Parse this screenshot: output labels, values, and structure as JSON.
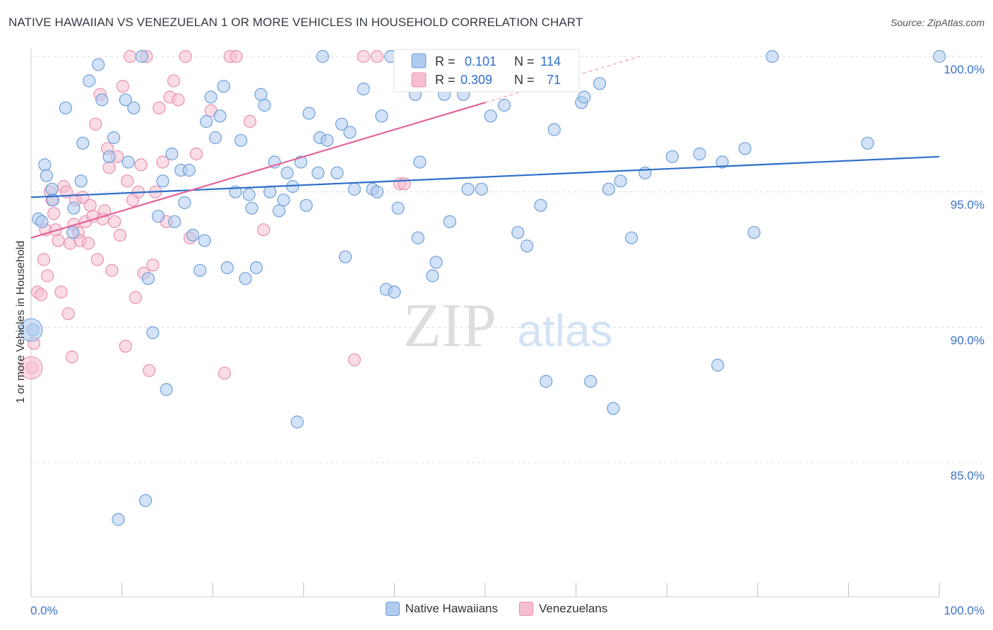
{
  "header": {
    "title": "NATIVE HAWAIIAN VS VENEZUELAN 1 OR MORE VEHICLES IN HOUSEHOLD CORRELATION CHART",
    "source": "Source: ZipAtlas.com"
  },
  "watermark": {
    "zip": "ZIP",
    "atlas": "atlas"
  },
  "colors": {
    "blue_fill": "#aecbee",
    "blue_stroke": "#6f9fd8",
    "blue_line": "#2f6fcb",
    "pink_fill": "#f6bfd0",
    "pink_stroke": "#ea8fb0",
    "pink_line": "#e2649a",
    "tick_label": "#3b73c6",
    "grid": "#dcdcdc"
  },
  "chart_data": {
    "type": "scatter",
    "title": "NATIVE HAWAIIAN VS VENEZUELAN 1 OR MORE VEHICLES IN HOUSEHOLD CORRELATION CHART",
    "xlabel": "",
    "ylabel": "1 or more Vehicles in Household",
    "xlim": [
      0,
      100
    ],
    "ylim": [
      80.5,
      100.5
    ],
    "x_tick_labels": [
      "0.0%",
      "100.0%"
    ],
    "y_ticks": [
      85,
      90,
      95,
      100
    ],
    "y_tick_labels": [
      "85.0%",
      "90.0%",
      "95.0%",
      "100.0%"
    ],
    "legend_stats": [
      {
        "series": "Native Hawaiians",
        "r_label": "R =",
        "r": "0.101",
        "n_label": "N =",
        "n": "114"
      },
      {
        "series": "Venezuelans",
        "r_label": "R =",
        "r": "0.309",
        "n_label": "N =",
        "n": "71"
      }
    ],
    "series": [
      {
        "name": "Native Hawaiians",
        "color": "blue",
        "trend": {
          "x": [
            0,
            100
          ],
          "y": [
            94.8,
            96.3
          ]
        },
        "points": [
          [
            0.2,
            89.9
          ],
          [
            0.8,
            94.0
          ],
          [
            1.2,
            93.9
          ],
          [
            1.5,
            96.0
          ],
          [
            1.7,
            95.6
          ],
          [
            2.3,
            95.1
          ],
          [
            2.4,
            94.7
          ],
          [
            3.8,
            98.1
          ],
          [
            4.6,
            93.5
          ],
          [
            4.7,
            94.4
          ],
          [
            5.5,
            95.4
          ],
          [
            5.7,
            96.8
          ],
          [
            6.4,
            99.1
          ],
          [
            7.4,
            99.7
          ],
          [
            7.8,
            98.4
          ],
          [
            8.6,
            96.3
          ],
          [
            9.1,
            97.0
          ],
          [
            9.6,
            82.9
          ],
          [
            10.4,
            98.4
          ],
          [
            10.7,
            96.1
          ],
          [
            11.3,
            98.1
          ],
          [
            12.2,
            100.0
          ],
          [
            12.6,
            83.6
          ],
          [
            12.9,
            91.8
          ],
          [
            13.4,
            89.8
          ],
          [
            14.0,
            94.1
          ],
          [
            14.5,
            95.4
          ],
          [
            14.9,
            87.7
          ],
          [
            15.5,
            96.4
          ],
          [
            15.8,
            93.9
          ],
          [
            16.5,
            95.8
          ],
          [
            16.9,
            94.6
          ],
          [
            17.4,
            95.8
          ],
          [
            17.8,
            93.4
          ],
          [
            18.6,
            92.1
          ],
          [
            19.1,
            93.2
          ],
          [
            19.3,
            97.6
          ],
          [
            19.8,
            98.5
          ],
          [
            20.3,
            97.0
          ],
          [
            20.8,
            97.8
          ],
          [
            21.2,
            98.9
          ],
          [
            21.6,
            92.2
          ],
          [
            22.5,
            95.0
          ],
          [
            23.1,
            96.9
          ],
          [
            23.6,
            91.8
          ],
          [
            24.0,
            94.9
          ],
          [
            24.3,
            94.4
          ],
          [
            24.8,
            92.2
          ],
          [
            25.3,
            98.6
          ],
          [
            25.7,
            98.2
          ],
          [
            26.3,
            95.0
          ],
          [
            26.8,
            96.1
          ],
          [
            27.3,
            94.3
          ],
          [
            27.8,
            94.7
          ],
          [
            28.2,
            95.7
          ],
          [
            28.8,
            95.2
          ],
          [
            29.3,
            86.5
          ],
          [
            29.7,
            96.1
          ],
          [
            30.3,
            94.5
          ],
          [
            30.6,
            97.9
          ],
          [
            31.6,
            95.7
          ],
          [
            31.8,
            97.0
          ],
          [
            32.1,
            100.0
          ],
          [
            32.6,
            96.9
          ],
          [
            33.7,
            95.7
          ],
          [
            34.2,
            97.5
          ],
          [
            34.6,
            92.6
          ],
          [
            35.1,
            97.2
          ],
          [
            35.6,
            95.1
          ],
          [
            36.6,
            98.8
          ],
          [
            37.6,
            95.1
          ],
          [
            38.1,
            95.0
          ],
          [
            38.6,
            97.8
          ],
          [
            39.1,
            91.4
          ],
          [
            39.6,
            100.0
          ],
          [
            40.0,
            91.3
          ],
          [
            40.4,
            94.4
          ],
          [
            41.6,
            100.0
          ],
          [
            42.3,
            98.6
          ],
          [
            42.6,
            93.3
          ],
          [
            42.8,
            96.1
          ],
          [
            44.2,
            91.9
          ],
          [
            44.6,
            92.4
          ],
          [
            45.5,
            98.6
          ],
          [
            46.1,
            93.9
          ],
          [
            47.6,
            98.6
          ],
          [
            48.1,
            95.1
          ],
          [
            49.6,
            95.1
          ],
          [
            50.6,
            97.8
          ],
          [
            52.1,
            98.2
          ],
          [
            53.6,
            93.5
          ],
          [
            54.6,
            93.0
          ],
          [
            56.1,
            94.5
          ],
          [
            56.7,
            88.0
          ],
          [
            57.6,
            97.3
          ],
          [
            59.6,
            100.0
          ],
          [
            60.6,
            98.3
          ],
          [
            60.9,
            98.5
          ],
          [
            61.6,
            88.0
          ],
          [
            62.6,
            99.0
          ],
          [
            63.6,
            95.1
          ],
          [
            64.1,
            87.0
          ],
          [
            64.9,
            95.4
          ],
          [
            66.1,
            93.3
          ],
          [
            67.6,
            95.7
          ],
          [
            70.6,
            96.3
          ],
          [
            73.6,
            96.4
          ],
          [
            75.6,
            88.6
          ],
          [
            76.1,
            96.1
          ],
          [
            78.6,
            96.6
          ],
          [
            79.6,
            93.5
          ],
          [
            81.6,
            100.0
          ],
          [
            92.1,
            96.8
          ],
          [
            100.0,
            100.0
          ]
        ]
      },
      {
        "name": "Venezuelans",
        "color": "pink",
        "trend": {
          "x": [
            0,
            50
          ],
          "y": [
            93.3,
            98.3
          ]
        },
        "dashed_extension": {
          "x": [
            50,
            67
          ],
          "y": [
            98.3,
            100.0
          ]
        },
        "points": [
          [
            0.1,
            88.5
          ],
          [
            0.3,
            89.4
          ],
          [
            0.7,
            91.3
          ],
          [
            1.1,
            91.2
          ],
          [
            1.4,
            92.5
          ],
          [
            1.6,
            93.6
          ],
          [
            1.8,
            91.9
          ],
          [
            2.1,
            95.0
          ],
          [
            2.3,
            94.7
          ],
          [
            2.5,
            94.2
          ],
          [
            2.7,
            93.6
          ],
          [
            3.0,
            93.2
          ],
          [
            3.3,
            91.3
          ],
          [
            3.6,
            95.2
          ],
          [
            3.9,
            95.0
          ],
          [
            4.1,
            90.5
          ],
          [
            4.3,
            93.1
          ],
          [
            4.5,
            88.9
          ],
          [
            4.7,
            93.8
          ],
          [
            4.9,
            94.7
          ],
          [
            5.2,
            93.5
          ],
          [
            5.4,
            93.2
          ],
          [
            5.7,
            94.8
          ],
          [
            6.0,
            93.9
          ],
          [
            6.3,
            93.1
          ],
          [
            6.5,
            94.5
          ],
          [
            6.8,
            94.1
          ],
          [
            7.1,
            97.5
          ],
          [
            7.3,
            92.5
          ],
          [
            7.6,
            98.6
          ],
          [
            7.9,
            94.0
          ],
          [
            8.1,
            94.3
          ],
          [
            8.4,
            96.6
          ],
          [
            8.6,
            95.9
          ],
          [
            8.9,
            92.1
          ],
          [
            9.2,
            93.9
          ],
          [
            9.5,
            96.3
          ],
          [
            9.8,
            93.4
          ],
          [
            10.1,
            98.9
          ],
          [
            10.4,
            89.3
          ],
          [
            10.6,
            95.4
          ],
          [
            10.9,
            100.0
          ],
          [
            11.2,
            94.7
          ],
          [
            11.5,
            91.1
          ],
          [
            11.8,
            95.0
          ],
          [
            12.1,
            96.0
          ],
          [
            12.4,
            92.0
          ],
          [
            12.7,
            100.0
          ],
          [
            13.0,
            88.4
          ],
          [
            13.4,
            92.3
          ],
          [
            13.7,
            95.0
          ],
          [
            14.1,
            98.1
          ],
          [
            14.5,
            96.1
          ],
          [
            14.9,
            93.9
          ],
          [
            15.3,
            98.5
          ],
          [
            15.7,
            99.1
          ],
          [
            16.2,
            98.4
          ],
          [
            17.0,
            100.0
          ],
          [
            17.5,
            93.3
          ],
          [
            18.2,
            96.4
          ],
          [
            19.8,
            98.0
          ],
          [
            21.3,
            88.3
          ],
          [
            21.9,
            100.0
          ],
          [
            22.6,
            100.0
          ],
          [
            24.1,
            97.6
          ],
          [
            25.6,
            93.6
          ],
          [
            35.6,
            88.8
          ],
          [
            36.6,
            100.0
          ],
          [
            38.1,
            100.0
          ],
          [
            40.6,
            95.3
          ],
          [
            41.1,
            95.3
          ]
        ]
      }
    ]
  }
}
